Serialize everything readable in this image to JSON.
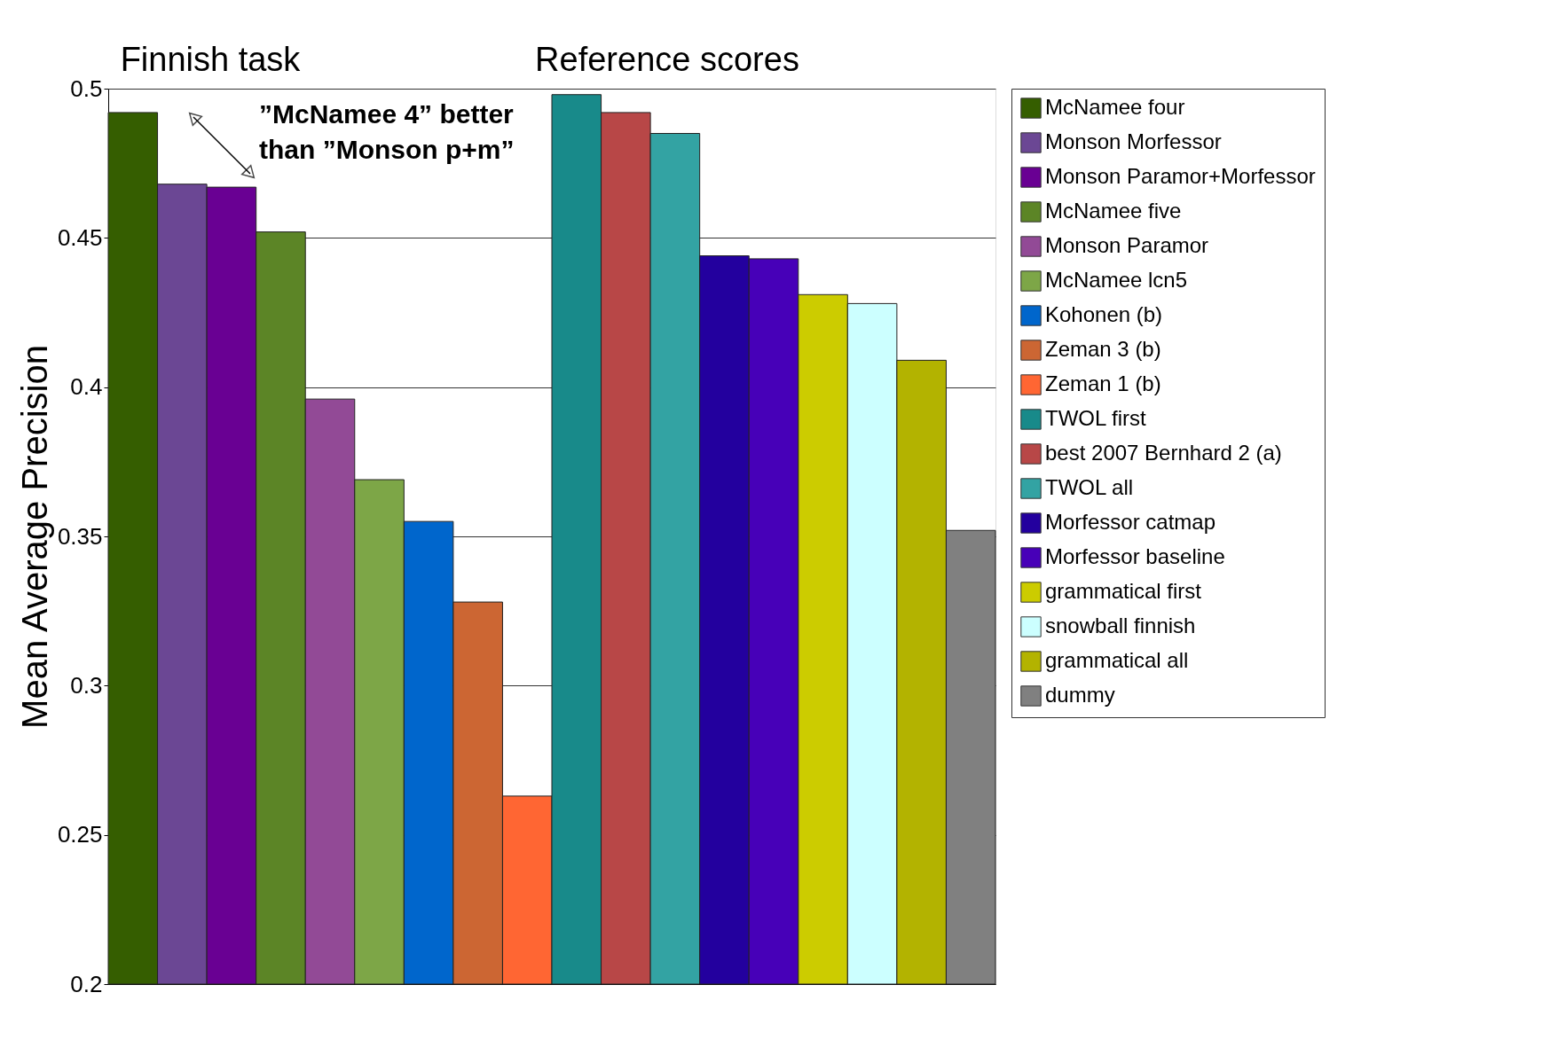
{
  "chart_data": {
    "type": "bar",
    "ylabel": "Mean Average Precision",
    "annotations": [
      "Finnish task",
      "Reference scores",
      "”McNamee 4” better\nthan ”Monson p+m”"
    ],
    "categories": [
      null,
      null,
      null,
      null,
      null,
      null,
      null,
      null,
      null,
      null,
      null,
      null,
      null,
      null,
      null,
      null,
      null,
      null
    ],
    "ylim": [
      0.2,
      0.5
    ],
    "yticks": [
      0.2,
      0.25,
      0.3,
      0.35,
      0.4,
      0.45,
      0.5
    ],
    "grid": "y",
    "legend": "right",
    "series": [
      {
        "name": "McNamee four",
        "color": "#355e00",
        "values": [
          0.492,
          null,
          null,
          null,
          null,
          null,
          null,
          null,
          null,
          null,
          null,
          null,
          null,
          null,
          null,
          null,
          null,
          null
        ]
      },
      {
        "name": "Monson Morfessor",
        "color": "#6b4794",
        "values": [
          null,
          0.468,
          null,
          null,
          null,
          null,
          null,
          null,
          null,
          null,
          null,
          null,
          null,
          null,
          null,
          null,
          null,
          null
        ]
      },
      {
        "name": "Monson Paramor+Morfessor",
        "color": "#690093",
        "values": [
          null,
          null,
          0.467,
          null,
          null,
          null,
          null,
          null,
          null,
          null,
          null,
          null,
          null,
          null,
          null,
          null,
          null,
          null
        ]
      },
      {
        "name": "McNamee five",
        "color": "#5c8526",
        "values": [
          null,
          null,
          null,
          0.452,
          null,
          null,
          null,
          null,
          null,
          null,
          null,
          null,
          null,
          null,
          null,
          null,
          null,
          null
        ]
      },
      {
        "name": "Monson Paramor",
        "color": "#924a96",
        "values": [
          null,
          null,
          null,
          null,
          0.396,
          null,
          null,
          null,
          null,
          null,
          null,
          null,
          null,
          null,
          null,
          null,
          null,
          null
        ]
      },
      {
        "name": "McNamee lcn5",
        "color": "#7da647",
        "values": [
          null,
          null,
          null,
          null,
          null,
          0.369,
          null,
          null,
          null,
          null,
          null,
          null,
          null,
          null,
          null,
          null,
          null,
          null
        ]
      },
      {
        "name": "Kohonen (b)",
        "color": "#0066cc",
        "values": [
          null,
          null,
          null,
          null,
          null,
          null,
          0.355,
          null,
          null,
          null,
          null,
          null,
          null,
          null,
          null,
          null,
          null,
          null
        ]
      },
      {
        "name": "Zeman 3 (b)",
        "color": "#cc6633",
        "values": [
          null,
          null,
          null,
          null,
          null,
          null,
          null,
          0.328,
          null,
          null,
          null,
          null,
          null,
          null,
          null,
          null,
          null,
          null
        ]
      },
      {
        "name": "Zeman 1 (b)",
        "color": "#ff6633",
        "values": [
          null,
          null,
          null,
          null,
          null,
          null,
          null,
          null,
          0.263,
          null,
          null,
          null,
          null,
          null,
          null,
          null,
          null,
          null
        ]
      },
      {
        "name": "TWOL first",
        "color": "#188a8a",
        "values": [
          null,
          null,
          null,
          null,
          null,
          null,
          null,
          null,
          null,
          0.498,
          null,
          null,
          null,
          null,
          null,
          null,
          null,
          null
        ]
      },
      {
        "name": "best 2007 Bernhard 2 (a)",
        "color": "#b84747",
        "values": [
          null,
          null,
          null,
          null,
          null,
          null,
          null,
          null,
          null,
          null,
          0.492,
          null,
          null,
          null,
          null,
          null,
          null,
          null
        ]
      },
      {
        "name": "TWOL all",
        "color": "#33a3a3",
        "values": [
          null,
          null,
          null,
          null,
          null,
          null,
          null,
          null,
          null,
          null,
          null,
          0.485,
          null,
          null,
          null,
          null,
          null,
          null
        ]
      },
      {
        "name": "Morfessor catmap",
        "color": "#23009e",
        "values": [
          null,
          null,
          null,
          null,
          null,
          null,
          null,
          null,
          null,
          null,
          null,
          null,
          0.444,
          null,
          null,
          null,
          null,
          null
        ]
      },
      {
        "name": "Morfessor baseline",
        "color": "#4700b8",
        "values": [
          null,
          null,
          null,
          null,
          null,
          null,
          null,
          null,
          null,
          null,
          null,
          null,
          null,
          0.443,
          null,
          null,
          null,
          null
        ]
      },
      {
        "name": "grammatical first",
        "color": "#cccc00",
        "values": [
          null,
          null,
          null,
          null,
          null,
          null,
          null,
          null,
          null,
          null,
          null,
          null,
          null,
          null,
          0.431,
          null,
          null,
          null
        ]
      },
      {
        "name": "snowball finnish",
        "color": "#ccffff",
        "values": [
          null,
          null,
          null,
          null,
          null,
          null,
          null,
          null,
          null,
          null,
          null,
          null,
          null,
          null,
          null,
          0.428,
          null,
          null
        ]
      },
      {
        "name": "grammatical all",
        "color": "#b3b300",
        "values": [
          null,
          null,
          null,
          null,
          null,
          null,
          null,
          null,
          null,
          null,
          null,
          null,
          null,
          null,
          null,
          null,
          0.409,
          null
        ]
      },
      {
        "name": "dummy",
        "color": "#808080",
        "values": [
          null,
          null,
          null,
          null,
          null,
          null,
          null,
          null,
          null,
          null,
          null,
          null,
          null,
          null,
          null,
          null,
          null,
          0.352
        ]
      }
    ]
  }
}
